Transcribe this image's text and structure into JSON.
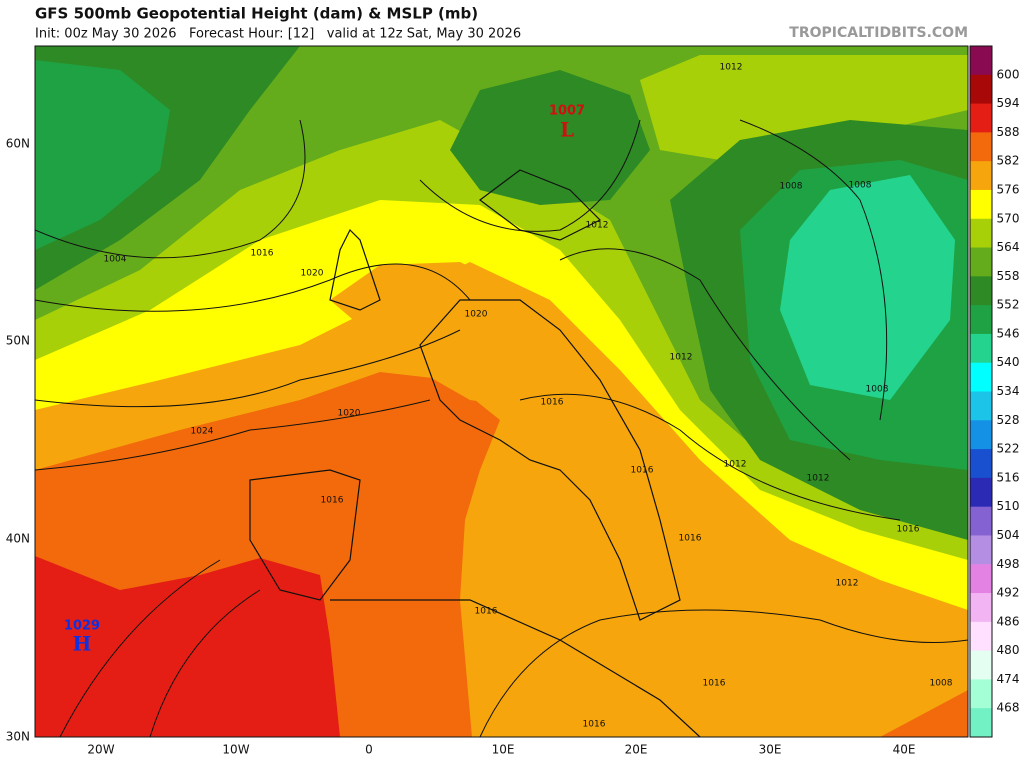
{
  "header": {
    "title": "GFS 500mb Geopotential Height (dam) & MSLP (mb)",
    "subtitle": "Init: 00z May 30 2026   Forecast Hour: [12]   valid at 12z Sat, May 30 2026",
    "brand": "TROPICALTIDBITS.COM"
  },
  "map": {
    "lat_labels": [
      "60N",
      "50N",
      "40N",
      "30N"
    ],
    "lon_labels": [
      "20W",
      "10W",
      "0",
      "10E",
      "20E",
      "30E",
      "40E"
    ],
    "centers": [
      {
        "value": "1007",
        "symbol": "L"
      },
      {
        "value": "1029",
        "symbol": "H"
      }
    ],
    "isobar_labels": [
      1004,
      1016,
      1020,
      1020,
      1024,
      1020,
      1016,
      1016,
      1016,
      1016,
      1016,
      1016,
      1016,
      1012,
      1012,
      1012,
      1012,
      1012,
      1012,
      1008,
      1008,
      1008,
      1016,
      1008
    ]
  },
  "colorbar": {
    "ticks": [
      600,
      594,
      588,
      582,
      576,
      570,
      564,
      558,
      552,
      546,
      540,
      534,
      528,
      522,
      516,
      510,
      504,
      498,
      492,
      486,
      480,
      474,
      468
    ],
    "colors": [
      "#8a0a52",
      "#a80808",
      "#e41e14",
      "#f26a0c",
      "#f6a60c",
      "#ffff00",
      "#a8d008",
      "#64ac1c",
      "#2e8a24",
      "#1fa244",
      "#24d48e",
      "#00ffff",
      "#1cc4e8",
      "#1490e4",
      "#1850d0",
      "#2a2ab4",
      "#8462d2",
      "#b48ee2",
      "#e482e4",
      "#f2b4f2",
      "#ffe0ff",
      "#e4fff2",
      "#a4ffd6",
      "#72f2c4"
    ]
  }
}
